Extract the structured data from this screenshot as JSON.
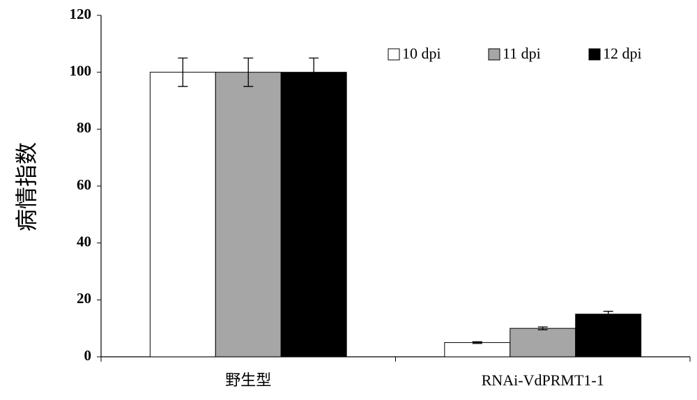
{
  "chart_data": {
    "type": "bar",
    "y_label": "病情指数",
    "categories": [
      "野生型",
      "RNAi-VdPRMT1-1"
    ],
    "series": [
      {
        "name": "10 dpi",
        "color": "#ffffff",
        "values": [
          100,
          5
        ],
        "errors": [
          5,
          0.3
        ]
      },
      {
        "name": "11 dpi",
        "color": "#a6a6a6",
        "values": [
          100,
          10
        ],
        "errors": [
          5,
          0.5
        ]
      },
      {
        "name": "12 dpi",
        "color": "#000000",
        "values": [
          100,
          15
        ],
        "errors": [
          5,
          1
        ]
      }
    ],
    "ylim": [
      0,
      120
    ],
    "yticks": [
      0,
      20,
      40,
      60,
      80,
      100,
      120
    ],
    "legend": "top-right",
    "grid": false
  }
}
